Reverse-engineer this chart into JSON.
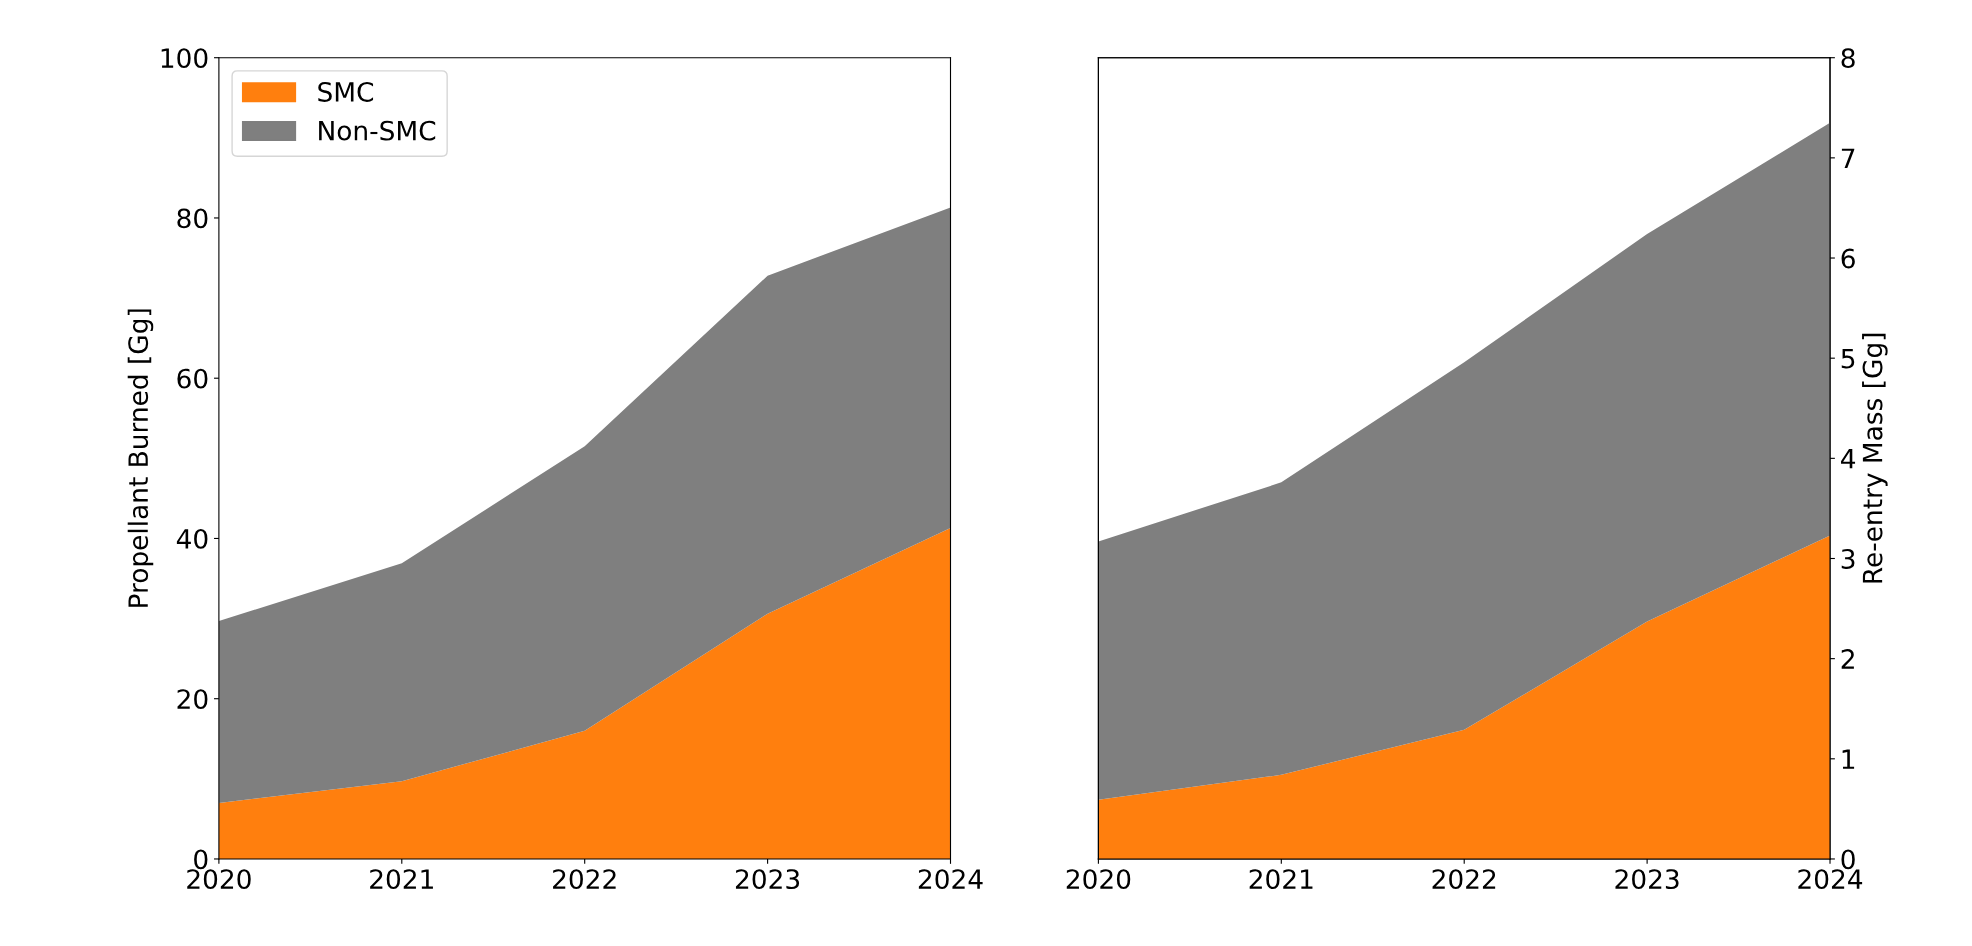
{
  "chart_data": [
    {
      "type": "area",
      "stacked": true,
      "ylabel": "Propellant Burned [Gg]",
      "x": [
        2020,
        2021,
        2022,
        2023,
        2024
      ],
      "xlim": [
        2020,
        2024
      ],
      "xticks": [
        2020,
        2021,
        2022,
        2023,
        2024
      ],
      "ylim": [
        0,
        100
      ],
      "yticks": [
        0,
        20,
        40,
        60,
        80,
        100
      ],
      "legend": "top left",
      "grid": false,
      "series": [
        {
          "name": "SMC",
          "color": "#ff7f0e",
          "values": [
            7.0,
            9.7,
            16.0,
            30.6,
            41.3
          ]
        },
        {
          "name": "Non-SMC",
          "color": "#7f7f7f",
          "values": [
            22.7,
            27.2,
            35.5,
            42.2,
            40.0
          ]
        }
      ]
    },
    {
      "type": "area",
      "stacked": true,
      "y2label": "Re-entry Mass [Gg]",
      "x": [
        2020,
        2021,
        2022,
        2023,
        2024
      ],
      "xlim": [
        2020,
        2024
      ],
      "xticks": [
        2020,
        2021,
        2022,
        2023,
        2024
      ],
      "y2lim": [
        0,
        8
      ],
      "y2ticks": [
        0,
        1,
        2,
        3,
        4,
        5,
        6,
        7,
        8
      ],
      "legend": false,
      "grid": false,
      "series": [
        {
          "color": "#ff7f0e",
          "axis": "y2",
          "values": [
            0.59,
            0.84,
            1.29,
            2.37,
            3.23
          ]
        },
        {
          "color": "#7f7f7f",
          "axis": "y2",
          "values": [
            2.58,
            2.92,
            3.67,
            3.87,
            4.12
          ]
        }
      ]
    }
  ]
}
